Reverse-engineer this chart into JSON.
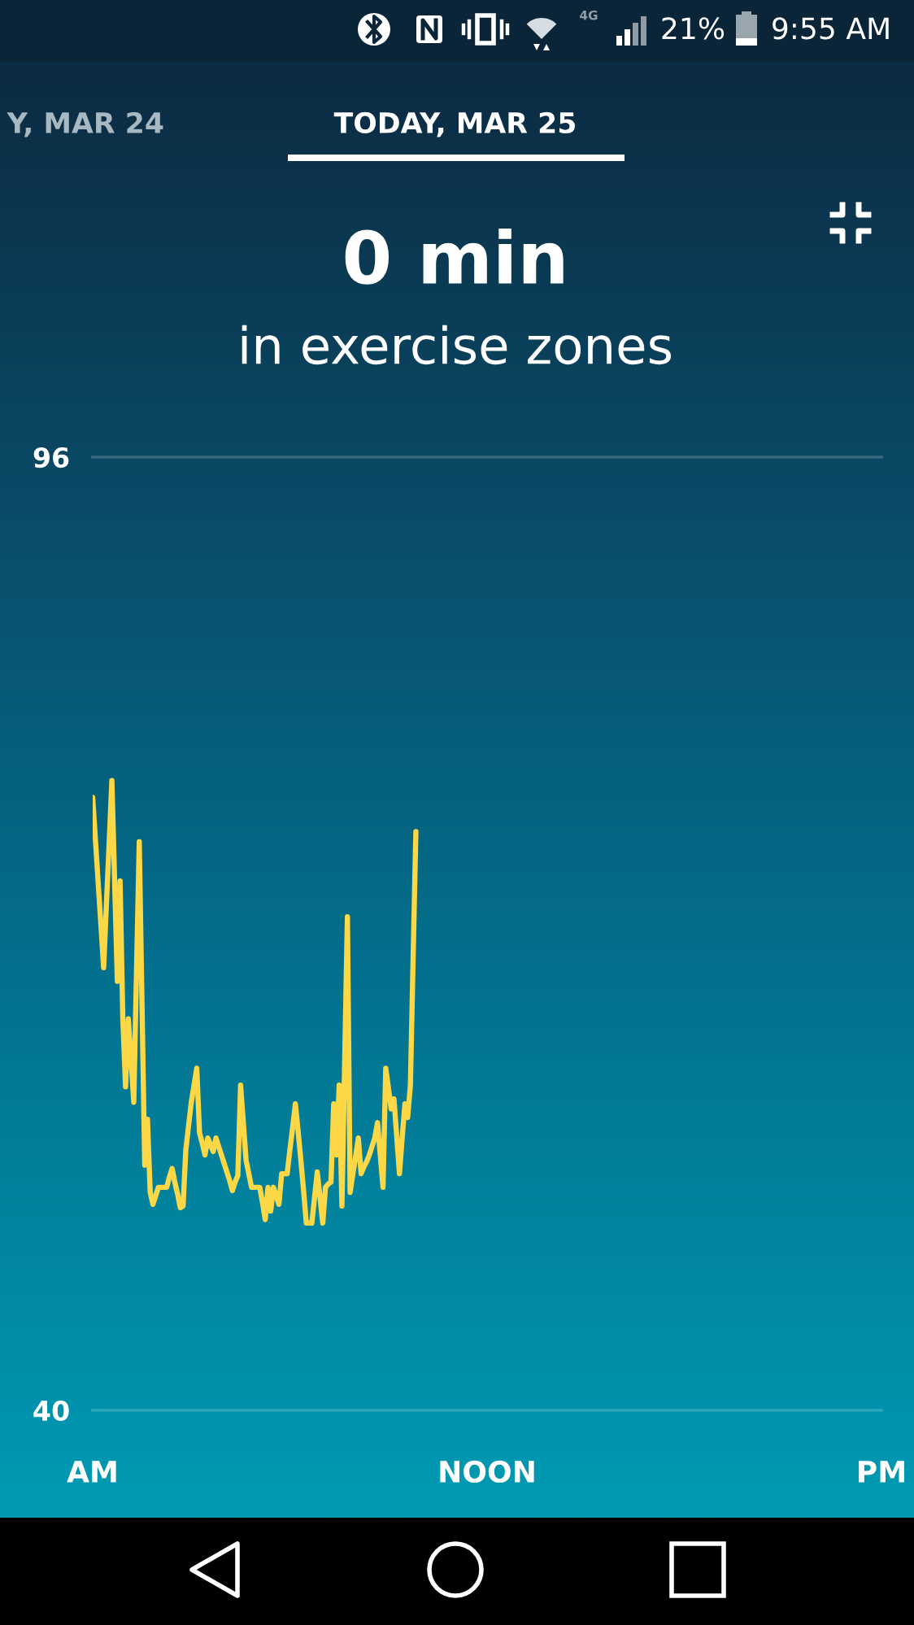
{
  "chart_data": {
    "type": "line",
    "title": "0 min",
    "subtitle": "in exercise zones",
    "categories": [
      "AM",
      null,
      null,
      null,
      null,
      null,
      null,
      null,
      null,
      null,
      null,
      null,
      null,
      null,
      null,
      null,
      null,
      null,
      null,
      null,
      null,
      null,
      null,
      null,
      null,
      null,
      null,
      null,
      null,
      null,
      null,
      null,
      null,
      null,
      null,
      null,
      null,
      null,
      null,
      null,
      null,
      null,
      null,
      null,
      null,
      null,
      null,
      null,
      null,
      null,
      null,
      null,
      null,
      null,
      null,
      null,
      null,
      null,
      null,
      null,
      null,
      null,
      null,
      null,
      null,
      null,
      null,
      null,
      null,
      null,
      null,
      null,
      null,
      null,
      null,
      null,
      null,
      null,
      null,
      null,
      null,
      null,
      null,
      null,
      null,
      null,
      null,
      null,
      null,
      null,
      null,
      null,
      null,
      null,
      null,
      null,
      null,
      null,
      null,
      null,
      null,
      null,
      null,
      null,
      null,
      null,
      null,
      null,
      null,
      null,
      null,
      null,
      null,
      null,
      null,
      null,
      null,
      null,
      null,
      null,
      null,
      null,
      null,
      null,
      null,
      null,
      null,
      null,
      null,
      null,
      null,
      null,
      null,
      null,
      null,
      null,
      null,
      null,
      null,
      null,
      null,
      null,
      null,
      null,
      "NOON",
      null,
      null,
      null,
      null,
      null,
      null,
      null,
      null,
      null,
      null,
      null,
      null,
      null,
      null,
      null,
      null,
      null,
      null,
      null,
      null,
      null,
      null,
      null,
      null,
      null,
      null,
      null,
      null,
      null,
      null,
      null,
      null,
      null,
      null,
      null,
      null,
      null,
      null,
      null,
      null,
      null,
      null,
      null,
      null,
      null,
      null,
      null,
      null,
      null,
      null,
      null,
      null,
      null,
      null,
      null,
      null,
      null,
      null,
      null,
      null,
      null,
      null,
      null,
      null,
      null,
      null,
      null,
      null,
      null,
      null,
      null,
      null,
      null,
      null,
      null,
      null,
      null,
      null,
      null,
      null,
      null,
      null,
      null,
      null,
      null,
      null,
      null,
      null,
      null,
      null,
      null,
      null,
      null,
      null,
      null,
      null,
      null,
      null,
      null,
      null,
      null,
      null,
      null,
      null,
      null,
      null,
      null,
      null,
      null,
      null,
      null,
      null,
      null,
      null,
      null,
      null,
      null,
      null,
      null,
      null,
      null,
      null,
      null,
      null,
      null,
      null,
      null,
      null,
      null,
      null,
      null,
      null,
      null,
      null,
      null,
      null,
      null,
      null,
      null,
      null,
      null,
      null,
      null,
      "PM"
    ],
    "values": [
      76.0,
      73.5,
      71.0,
      68.5,
      66.0,
      69.7,
      73.3,
      77.0,
      71.1,
      65.2,
      71.1,
      63.0,
      59.0,
      63.0,
      60.6,
      58.1,
      65.8,
      73.4,
      63.9,
      54.4,
      57.1,
      52.8,
      52.1,
      52.6,
      53.1,
      53.1,
      53.1,
      53.1,
      53.7,
      54.2,
      53.4,
      52.7,
      51.9,
      52.0,
      55.3,
      56.7,
      58.1,
      59.1,
      60.1,
      56.3,
      55.7,
      55.0,
      56.0,
      55.6,
      55.2,
      56.0,
      55.5,
      55.0,
      54.5,
      54.0,
      53.5,
      52.9,
      53.4,
      53.8,
      59.1,
      56.9,
      54.7,
      53.9,
      53.1,
      53.1,
      53.1,
      53.1,
      52.2,
      51.2,
      53.1,
      51.7,
      53.1,
      52.6,
      52.1,
      53.9,
      53.9,
      53.9,
      55.3,
      56.6,
      58.0,
      56.4,
      54.7,
      52.9,
      51.0,
      51.0,
      51.0,
      52.5,
      54.0,
      52.5,
      51.0,
      53.1,
      53.3,
      53.4,
      58.0,
      55.0,
      59.1,
      52.0,
      60.5,
      69.0,
      52.8,
      53.9,
      54.9,
      56.0,
      53.9,
      54.3,
      54.6,
      55.0,
      55.5,
      56.0,
      56.9,
      55.0,
      53.1,
      60.1,
      58.9,
      57.7,
      58.3,
      56.1,
      53.9,
      56.0,
      58.0,
      57.2,
      59.1,
      66.6,
      74.0,
      null,
      null,
      null,
      null,
      null,
      null,
      null,
      null,
      null,
      null,
      null,
      null,
      null,
      null,
      null,
      null,
      null,
      null,
      null,
      null,
      null,
      null,
      null,
      null,
      null,
      null,
      null,
      null,
      null,
      null,
      null,
      null,
      null,
      null,
      null,
      null,
      null,
      null,
      null,
      null,
      null,
      null,
      null,
      null,
      null,
      null,
      null,
      null,
      null,
      null,
      null,
      null,
      null,
      null,
      null,
      null,
      null,
      null,
      null,
      null,
      null,
      null,
      null,
      null,
      null,
      null,
      null,
      null,
      null,
      null,
      null,
      null,
      null,
      null,
      null,
      null,
      null,
      null,
      null,
      null,
      null,
      null,
      null,
      null,
      null,
      null,
      null,
      null,
      null,
      null,
      null,
      null,
      null,
      null,
      null,
      null,
      null,
      null,
      null,
      null,
      null,
      null,
      null,
      null,
      null,
      null,
      null,
      null,
      null,
      null,
      null,
      null,
      null,
      null,
      null,
      null,
      null,
      null,
      null,
      null,
      null,
      null,
      null,
      null,
      null,
      null,
      null,
      null,
      null,
      null,
      null,
      null,
      null,
      null,
      null,
      null,
      null,
      null,
      null,
      null,
      null,
      null,
      null,
      null,
      null,
      null,
      null,
      null,
      null,
      null,
      null,
      null,
      null,
      null,
      null,
      null,
      null,
      null,
      null,
      null,
      null,
      null,
      null,
      null,
      null,
      null,
      null,
      null,
      null,
      null
    ],
    "color": "#fcd846",
    "ylim": [
      40,
      96
    ],
    "yticks": [
      40,
      96
    ],
    "annotations": [
      "4G",
      "21%",
      "9:55 AM",
      "Y, MAR 24",
      "TODAY, MAR 25"
    ]
  }
}
